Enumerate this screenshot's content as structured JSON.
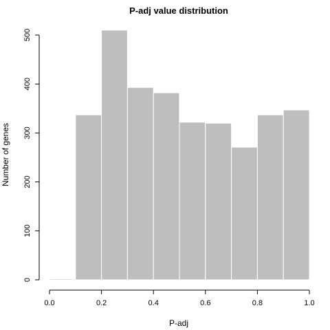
{
  "chart_data": {
    "type": "bar",
    "title": "P-adj value distribution",
    "xlabel": "P-adj",
    "ylabel": "Number of genes",
    "xlim": [
      0,
      1
    ],
    "ylim": [
      0,
      510
    ],
    "bin_edges": [
      0.0,
      0.1,
      0.2,
      0.3,
      0.4,
      0.5,
      0.6,
      0.7,
      0.8,
      0.9,
      1.0
    ],
    "values": [
      2,
      337,
      510,
      393,
      382,
      322,
      320,
      271,
      337,
      347
    ],
    "x_ticks": [
      0.0,
      0.2,
      0.4,
      0.6,
      0.8,
      1.0
    ],
    "x_tick_labels": [
      "0.0",
      "0.2",
      "0.4",
      "0.6",
      "0.8",
      "1.0"
    ],
    "y_ticks": [
      0,
      100,
      200,
      300,
      400,
      500
    ],
    "y_tick_labels": [
      "0",
      "100",
      "200",
      "300",
      "400",
      "500"
    ],
    "bar_color": "#bebebe",
    "grid": false,
    "legend": "none"
  }
}
